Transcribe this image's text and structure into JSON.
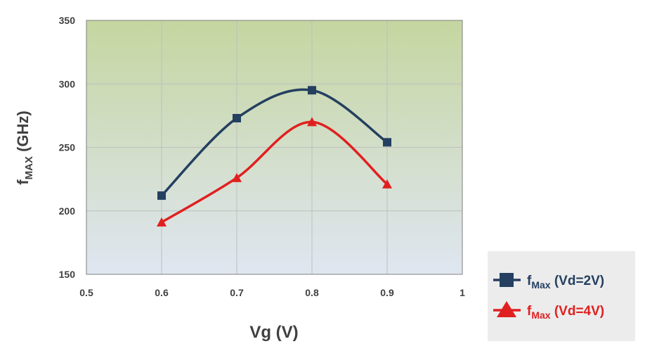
{
  "chart_data": {
    "type": "line",
    "x": [
      0.6,
      0.7,
      0.8,
      0.9
    ],
    "series": [
      {
        "name": "fMax (Vd=2V)",
        "values": [
          212,
          273,
          295,
          254
        ],
        "color": "#243f60",
        "marker": "square"
      },
      {
        "name": "fMax (Vd=4V)",
        "values": [
          191,
          226,
          270,
          221
        ],
        "color": "#e02020",
        "marker": "triangle"
      }
    ],
    "xlim": [
      0.5,
      1.0
    ],
    "ylim": [
      150,
      350
    ],
    "xticks": [
      "0.5",
      "0.6",
      "0.7",
      "0.8",
      "0.9",
      "1"
    ],
    "yticks": [
      "150",
      "200",
      "250",
      "300",
      "350"
    ],
    "xlabel": "Vg (V)",
    "ylabel": {
      "main": "f",
      "sub": "MAX",
      "unit": " (GHz)"
    },
    "legend": {
      "position": "bottom-right",
      "entries": [
        {
          "main": "f",
          "sub": "Max",
          "rest": " (Vd=2V)"
        },
        {
          "main": "f",
          "sub": "Max",
          "rest": " (Vd=4V)"
        }
      ]
    },
    "grid": true,
    "smooth": true
  },
  "colors": {
    "plot_bg_top": "#c5d6a0",
    "plot_bg_bottom": "#dfe6f1",
    "grid": "#bfbfbf",
    "axis_text": "#404040",
    "legend_bg": "#ececec"
  }
}
